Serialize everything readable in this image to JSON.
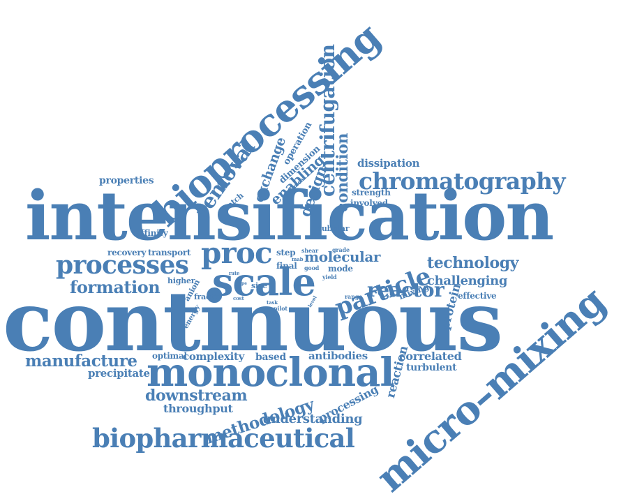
{
  "accent_color": "#4a7fb5",
  "words": {
    "continuous": "continuous",
    "intensification": "intensification",
    "bioprocessing": "bioprocessing",
    "micro_mixing": "micro–mixing",
    "monoclonal": "monoclonal",
    "biopharmaceutical": "biopharmaceutical",
    "scale": "scale",
    "processes": "processes",
    "proc": "proc",
    "particle": "particle",
    "chromatography": "chromatography",
    "centrifugation": "centrifugation",
    "removal": "removal",
    "condition": "condition",
    "design": "design",
    "exchange": "exchange",
    "enabling": "enabling",
    "dimension": "dimension",
    "operation": "operation",
    "reactor": "reactor",
    "formation": "formation",
    "manufacture": "manufacture",
    "downstream": "downstream",
    "methodology": "methodology",
    "understanding": "understanding",
    "technology": "technology",
    "challenging": "challenging",
    "molecular": "molecular",
    "protein": "protein",
    "reaction": "reaction",
    "processing": "processing",
    "throughput": "throughput",
    "complexity": "complexity",
    "antibodies": "antibodies",
    "correlated": "correlated",
    "turbulent": "turbulent",
    "precipitate": "precipitate",
    "optimal": "optimal",
    "based": "based",
    "properties": "properties",
    "dissipation": "dissipation",
    "strength": "strength",
    "involved": "involved",
    "tubular": "tubular",
    "affinity": "affinity",
    "recovery": "recovery",
    "transport": "transport",
    "step": "step",
    "final": "final",
    "mode": "mode",
    "good": "good",
    "grade": "grade",
    "shear": "shear",
    "yield": "yield",
    "range": "range",
    "size": "size",
    "cost": "cost",
    "task": "task",
    "pilot": "pilot",
    "higher": "higher",
    "anion": "anion",
    "fractal": "fractal",
    "energy": "energy",
    "effective": "effective",
    "mixing": "mixing",
    "batch": "batch",
    "clinical": "clinical",
    "mab": "mab",
    "level": "level",
    "rate": "rate",
    "type": "type"
  }
}
